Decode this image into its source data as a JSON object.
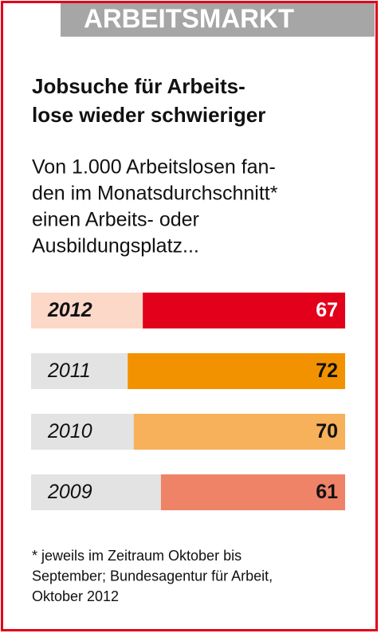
{
  "chart_data": {
    "type": "bar",
    "header": "ARBEITSMARKT",
    "title": [
      "Jobsuche für Arbeits-",
      "lose wieder schwieriger"
    ],
    "subtitle": [
      "Von 1.000 Arbeitslosen fan-",
      "den im Monatsdurchschnitt*",
      "einen Arbeits- oder",
      "Ausbildungsplatz..."
    ],
    "categories": [
      "2012",
      "2011",
      "2010",
      "2009"
    ],
    "values": [
      67,
      72,
      70,
      61
    ],
    "colors": [
      "#e2001a",
      "#f39200",
      "#f6b15a",
      "#ef8368"
    ],
    "track_colors": [
      "#fbd8c8",
      "#e3e3e3",
      "#e3e3e3",
      "#e3e3e3"
    ],
    "xlim": [
      0,
      104
    ],
    "footnote": [
      "* jeweils im Zeitraum Oktober bis",
      "September; Bundesagentur für Arbeit,",
      "Oktober 2012"
    ]
  }
}
